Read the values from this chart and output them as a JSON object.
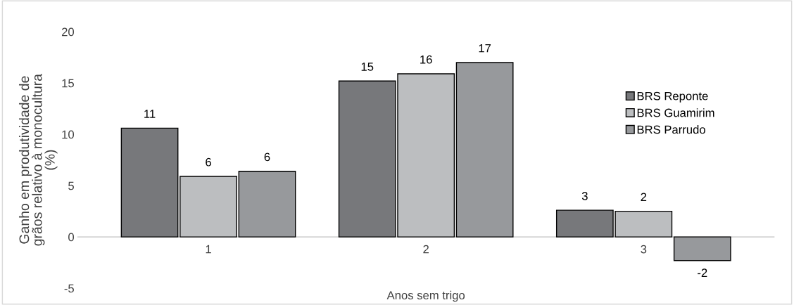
{
  "chart_data": {
    "type": "bar",
    "xlabel": "Anos sem trigo",
    "ylabel": "Ganho em produtividade de\ngrãos relativo à monocultura\n(%)",
    "categories": [
      "1",
      "2",
      "3"
    ],
    "series": [
      {
        "name": "BRS Reponte",
        "color": "#77787b",
        "values": [
          10.6,
          15.2,
          2.6
        ],
        "value_labels": [
          "11",
          "15",
          "3"
        ]
      },
      {
        "name": "BRS Guamirim",
        "color": "#bcbec0",
        "values": [
          5.9,
          15.9,
          2.5
        ],
        "value_labels": [
          "6",
          "16",
          "2"
        ]
      },
      {
        "name": "BRS Parrudo",
        "color": "#97999c",
        "values": [
          6.4,
          17.0,
          -2.3
        ],
        "value_labels": [
          "6",
          "17",
          "-2"
        ]
      }
    ],
    "ylim": [
      -5,
      20
    ],
    "yticks": [
      -5,
      0,
      5,
      10,
      15,
      20
    ],
    "grid": false,
    "legend": "right"
  }
}
